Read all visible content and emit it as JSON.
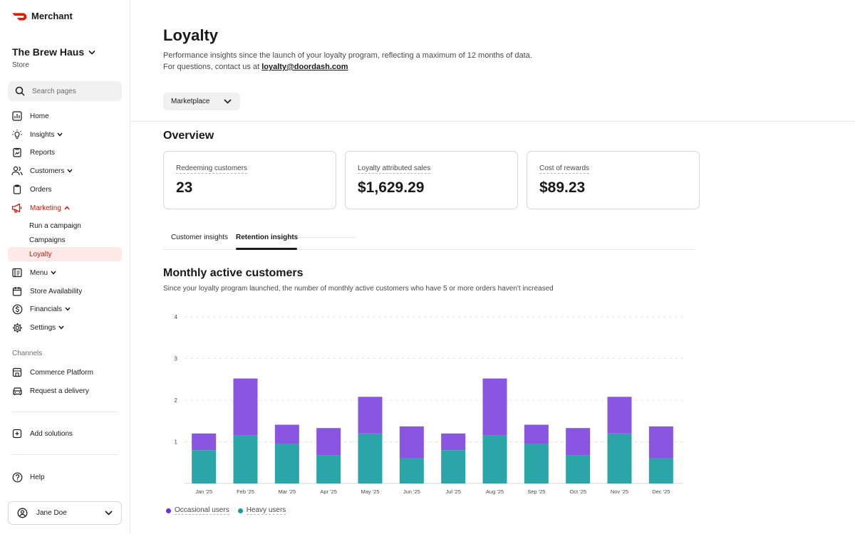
{
  "brand": {
    "name": "Merchant"
  },
  "store": {
    "name": "The Brew Haus",
    "type": "Store"
  },
  "search": {
    "placeholder": "Search pages"
  },
  "nav": {
    "home": "Home",
    "insights": "Insights",
    "reports": "Reports",
    "customers": "Customers",
    "orders": "Orders",
    "marketing": "Marketing",
    "marketing_sub": [
      "Run a campaign",
      "Campaigns",
      "Loyalty"
    ],
    "menu": "Menu",
    "store_availability": "Store Availability",
    "financials": "Financials",
    "settings": "Settings",
    "channels_label": "Channels",
    "commerce_platform": "Commerce Platform",
    "request_delivery": "Request a delivery",
    "add_solutions": "Add solutions",
    "help": "Help",
    "user": "Jane Doe"
  },
  "page": {
    "title": "Loyalty",
    "desc_line1": "Performance insights since the launch of your loyalty program, reflecting a maximum of 12 months of data.",
    "desc_line2_prefix": "For questions, contact us at ",
    "contact_email": "loyalty@doordash.com",
    "channel": "Marketplace"
  },
  "overview": {
    "title": "Overview",
    "cards": [
      {
        "label": "Redeeming customers",
        "value": "23"
      },
      {
        "label": "Loyalty attributed sales",
        "value": "$1,629.29"
      },
      {
        "label": "Cost of rewards",
        "value": "$89.23"
      }
    ]
  },
  "tabs": [
    "Customer insights",
    "Retention insights"
  ],
  "colors": {
    "accent": "#d91400",
    "occasional": "#8a55e0",
    "heavy": "#2aa5a8"
  },
  "chart": {
    "title": "Monthly active customers",
    "subtitle": "Since your loyalty program launched, the number of monthly active customers who have 5 or more orders haven't increased"
  },
  "chart_data": {
    "type": "bar",
    "stacked": true,
    "categories": [
      "Jan '25",
      "Feb '25",
      "Mar '25",
      "Apr '25",
      "May '25",
      "Jun '25",
      "Jul '25",
      "Aug '25",
      "Sep '25",
      "Oct '25",
      "Nov '25",
      "Dec '25"
    ],
    "series": [
      {
        "name": "Heavy users",
        "values": [
          0.8,
          1.15,
          0.95,
          0.67,
          1.2,
          0.6,
          0.8,
          1.15,
          0.95,
          0.67,
          1.2,
          0.6
        ]
      },
      {
        "name": "Occasional users",
        "values": [
          0.4,
          1.37,
          0.46,
          0.66,
          0.88,
          0.77,
          0.4,
          1.37,
          0.46,
          0.66,
          0.88,
          0.77
        ]
      }
    ],
    "yticks": [
      1,
      2,
      3,
      4
    ],
    "ylim": [
      0,
      4
    ],
    "grid": true,
    "legend": "bottom-left"
  }
}
